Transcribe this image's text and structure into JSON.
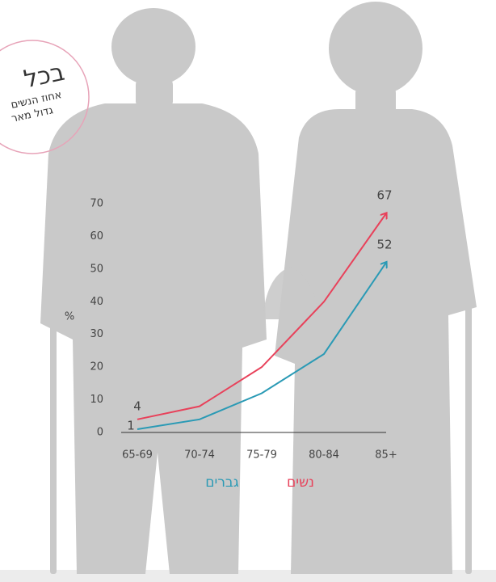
{
  "badge": {
    "title": "בכל",
    "line1": "אחוז הנשים",
    "line2": "גדול מאר"
  },
  "chart_data": {
    "type": "line",
    "y_label": "%",
    "categories": [
      "65-69",
      "70-74",
      "75-79",
      "80-84",
      "85+"
    ],
    "series": [
      {
        "name": "נשים",
        "color": "#e8415a",
        "values": [
          4,
          8,
          20,
          40,
          67
        ]
      },
      {
        "name": "גברים",
        "color": "#2a9ab5",
        "values": [
          1,
          4,
          12,
          24,
          52
        ]
      }
    ],
    "ylim": [
      0,
      70
    ],
    "yticks": [
      0,
      10,
      20,
      30,
      40,
      50,
      60,
      70
    ]
  }
}
